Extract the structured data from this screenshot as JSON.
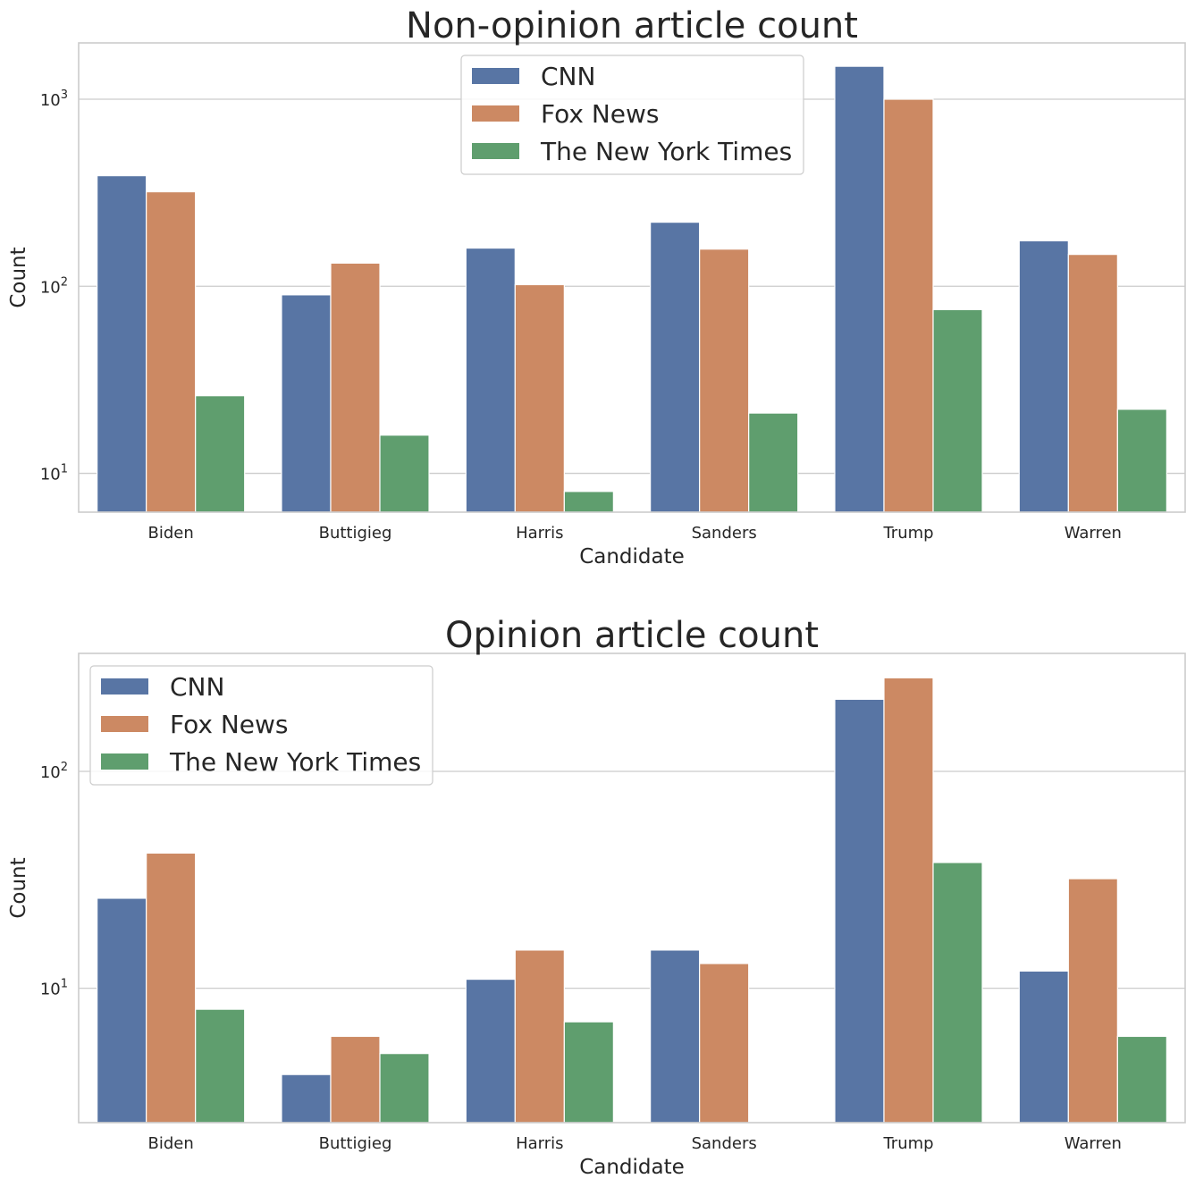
{
  "chart_data": [
    {
      "type": "bar",
      "title": "Non-opinion article count",
      "xlabel": "Candidate",
      "ylabel": "Count",
      "yscale": "log",
      "ylim": [
        6.2,
        2000
      ],
      "yticks": [
        {
          "value": 10,
          "label": "10^1"
        },
        {
          "value": 100,
          "label": "10^2"
        },
        {
          "value": 1000,
          "label": "10^3"
        }
      ],
      "grid": true,
      "legend_position": "top-center",
      "categories": [
        "Biden",
        "Buttigieg",
        "Harris",
        "Sanders",
        "Trump",
        "Warren"
      ],
      "series": [
        {
          "name": "CNN",
          "color": "#5875a4",
          "values": [
            390,
            90,
            160,
            220,
            1500,
            175
          ]
        },
        {
          "name": "Fox News",
          "color": "#cc8963",
          "values": [
            320,
            133,
            102,
            158,
            1000,
            148
          ]
        },
        {
          "name": "The New York Times",
          "color": "#5f9e6e",
          "values": [
            26,
            16,
            8,
            21,
            75,
            22
          ]
        }
      ]
    },
    {
      "type": "bar",
      "title": "Opinion article count",
      "xlabel": "Candidate",
      "ylabel": "Count",
      "yscale": "log",
      "ylim": [
        2.4,
        350
      ],
      "yticks": [
        {
          "value": 10,
          "label": "10^1"
        },
        {
          "value": 100,
          "label": "10^2"
        }
      ],
      "grid": true,
      "legend_position": "top-left",
      "categories": [
        "Biden",
        "Buttigieg",
        "Harris",
        "Sanders",
        "Trump",
        "Warren"
      ],
      "series": [
        {
          "name": "CNN",
          "color": "#5875a4",
          "values": [
            26,
            4,
            11,
            15,
            215,
            12
          ]
        },
        {
          "name": "Fox News",
          "color": "#cc8963",
          "values": [
            42,
            6,
            15,
            13,
            270,
            32
          ]
        },
        {
          "name": "The New York Times",
          "color": "#5f9e6e",
          "values": [
            8,
            5,
            7,
            2,
            38,
            6
          ]
        }
      ]
    }
  ]
}
